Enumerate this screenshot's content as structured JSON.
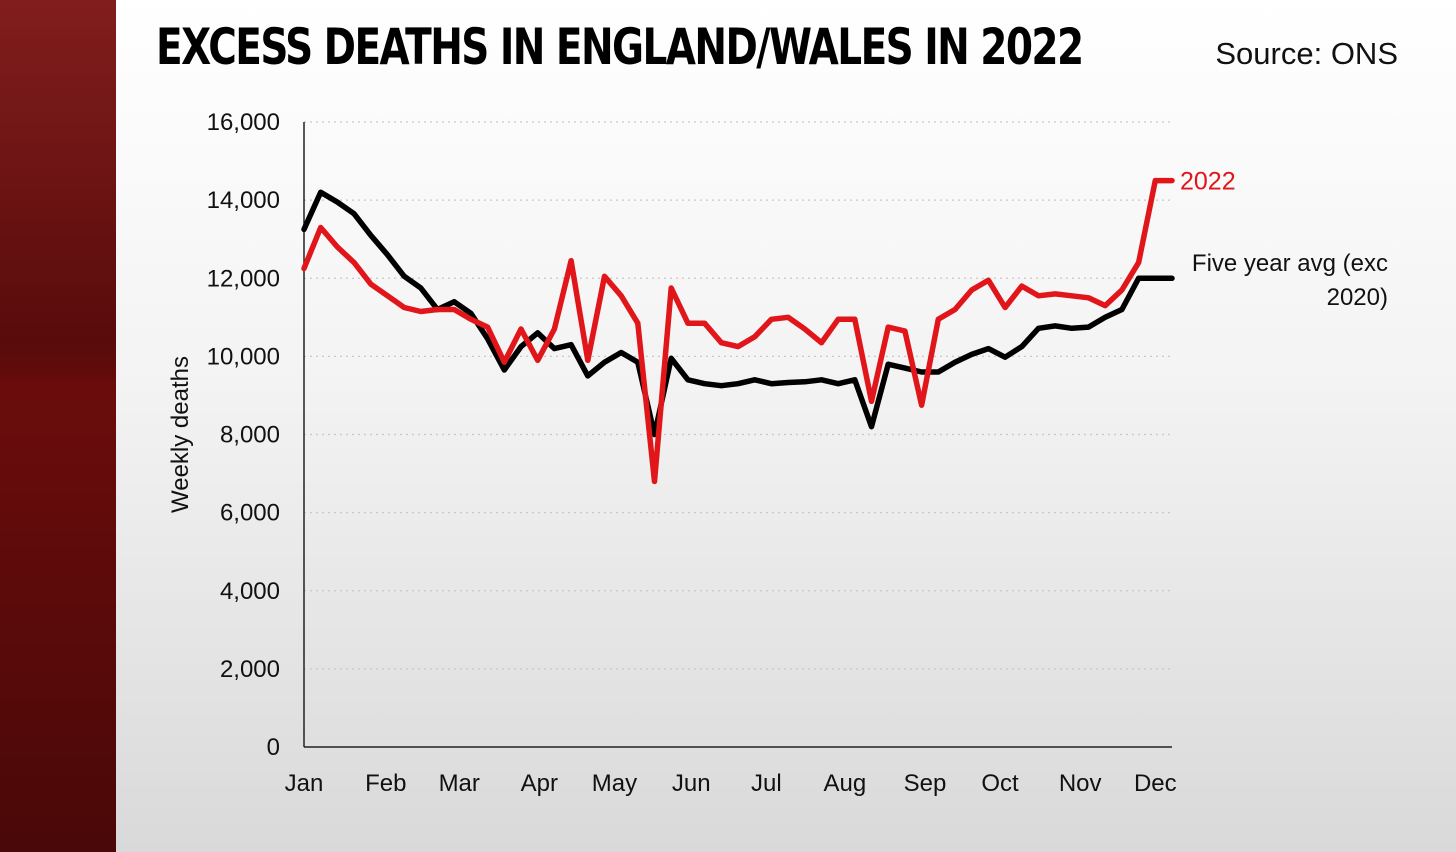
{
  "header": {
    "title": "EXCESS DEATHS IN ENGLAND/WALES IN 2022",
    "source": "Source: ONS"
  },
  "colors": {
    "brand_red": "#6b0c0c",
    "series_2022": "#e0161b",
    "series_avg": "#000000"
  },
  "chart_data": {
    "type": "line",
    "title": "EXCESS DEATHS IN ENGLAND/WALES IN 2022",
    "xlabel": "",
    "ylabel": "Weekly deaths",
    "ylim": [
      0,
      16000
    ],
    "yticks": [
      0,
      2000,
      4000,
      6000,
      8000,
      10000,
      12000,
      14000,
      16000
    ],
    "ytick_labels": [
      "0",
      "2,000",
      "4,000",
      "6,000",
      "8,000",
      "10,000",
      "12,000",
      "14,000",
      "16,000"
    ],
    "xlim": [
      1,
      53
    ],
    "x_ticks": [
      {
        "label": "Jan",
        "week": 1
      },
      {
        "label": "Feb",
        "week": 5.9
      },
      {
        "label": "Mar",
        "week": 10.3
      },
      {
        "label": "Apr",
        "week": 15.1
      },
      {
        "label": "May",
        "week": 19.6
      },
      {
        "label": "Jun",
        "week": 24.2
      },
      {
        "label": "Jul",
        "week": 28.7
      },
      {
        "label": "Aug",
        "week": 33.4
      },
      {
        "label": "Sep",
        "week": 38.2
      },
      {
        "label": "Oct",
        "week": 42.7
      },
      {
        "label": "Nov",
        "week": 47.5
      },
      {
        "label": "Dec",
        "week": 52
      }
    ],
    "grid": "horizontal-dotted",
    "series": [
      {
        "name": "2022",
        "color": "#e0161b",
        "label": "2022",
        "x": [
          1,
          2,
          3,
          4,
          5,
          6,
          7,
          8,
          9,
          10,
          11,
          12,
          13,
          14,
          15,
          16,
          17,
          18,
          19,
          20,
          21,
          22,
          23,
          24,
          25,
          26,
          27,
          28,
          29,
          30,
          31,
          32,
          33,
          34,
          35,
          36,
          37,
          38,
          39,
          40,
          41,
          42,
          43,
          44,
          45,
          46,
          47,
          48,
          49,
          50,
          51,
          52,
          53
        ],
        "values": [
          12250,
          13300,
          12800,
          12400,
          11850,
          11550,
          11250,
          11150,
          11200,
          11200,
          10950,
          10750,
          9850,
          10700,
          9900,
          10700,
          12450,
          9900,
          12050,
          11550,
          10850,
          6800,
          11750,
          10850,
          10850,
          10350,
          10250,
          10500,
          10950,
          11000,
          10700,
          10350,
          10950,
          10950,
          8850,
          10750,
          10650,
          8750,
          10950,
          11200,
          11700,
          11950,
          11250,
          11800,
          11550,
          11600,
          11550,
          11500,
          11300,
          11700,
          12400,
          14500,
          14500
        ]
      },
      {
        "name": "Five year avg (exc 2020)",
        "color": "#000000",
        "label": "Five year avg (exc\n2020)",
        "x": [
          1,
          2,
          3,
          4,
          5,
          6,
          7,
          8,
          9,
          10,
          11,
          12,
          13,
          14,
          15,
          16,
          17,
          18,
          19,
          20,
          21,
          22,
          23,
          24,
          25,
          26,
          27,
          28,
          29,
          30,
          31,
          32,
          33,
          34,
          35,
          36,
          37,
          38,
          39,
          40,
          41,
          42,
          43,
          44,
          45,
          46,
          47,
          48,
          49,
          50,
          51,
          52,
          53
        ],
        "values": [
          13250,
          14200,
          13950,
          13650,
          13100,
          12600,
          12050,
          11750,
          11200,
          11400,
          11100,
          10450,
          9650,
          10250,
          10600,
          10200,
          10300,
          9500,
          9850,
          10100,
          9850,
          8000,
          9950,
          9400,
          9300,
          9250,
          9300,
          9400,
          9300,
          9330,
          9350,
          9400,
          9300,
          9400,
          8200,
          9800,
          9700,
          9600,
          9600,
          9850,
          10050,
          10200,
          9980,
          10250,
          10720,
          10780,
          10720,
          10750,
          11000,
          11200,
          12000,
          12000,
          12000
        ]
      }
    ]
  }
}
